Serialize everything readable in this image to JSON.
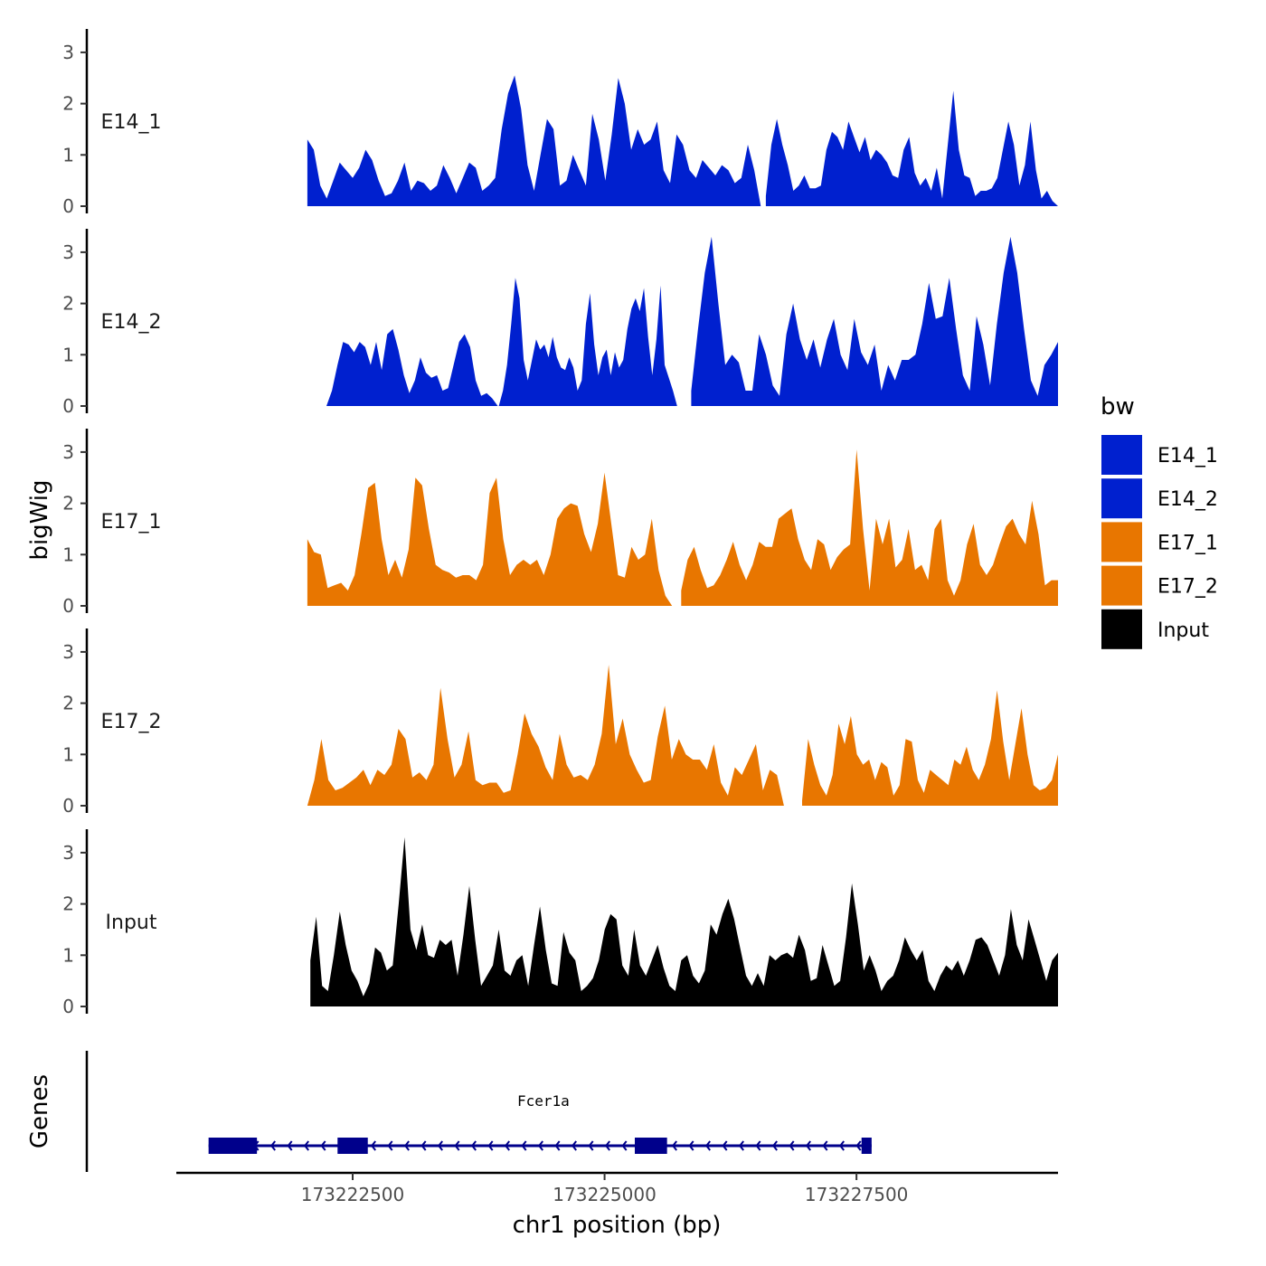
{
  "chart_data": {
    "type": "area",
    "ylabel": "bigWig",
    "xlabel": "chr1 position (bp)",
    "x_ticks": [
      "173222500",
      "173225000",
      "173227500"
    ],
    "x_tick_values": [
      173222500,
      173225000,
      173227500
    ],
    "xlim": [
      173220750,
      173229500
    ],
    "y_ticks": [
      "0",
      "1",
      "2",
      "3"
    ],
    "ylim": [
      0,
      3.4
    ],
    "legend": {
      "title": "bw",
      "placement": "right",
      "entries": [
        {
          "label": "E14_1",
          "color": "#0020CF"
        },
        {
          "label": "E14_2",
          "color": "#0020CF"
        },
        {
          "label": "E17_1",
          "color": "#E87600"
        },
        {
          "label": "E17_2",
          "color": "#E87600"
        },
        {
          "label": "Input",
          "color": "#000000"
        }
      ]
    },
    "series": [
      {
        "name": "E14_1",
        "color": "#0020CF",
        "segments": [
          {
            "start": 173222050,
            "end": 173226550,
            "values": [
              1.3,
              1.1,
              0.4,
              0.15,
              0.5,
              0.85,
              0.7,
              0.55,
              0.75,
              1.1,
              0.9,
              0.5,
              0.2,
              0.25,
              0.5,
              0.85,
              0.3,
              0.5,
              0.45,
              0.3,
              0.4,
              0.8,
              0.55,
              0.25,
              0.55,
              0.85,
              0.75,
              0.3,
              0.4,
              0.55,
              1.5,
              2.2,
              2.55,
              1.9,
              0.8,
              0.3,
              1.0,
              1.7,
              1.5,
              0.4,
              0.5,
              1.0,
              0.7,
              0.4,
              1.8,
              1.3,
              0.5,
              1.4,
              2.5,
              2.0,
              1.1,
              1.5,
              1.2,
              1.3,
              1.65,
              0.7,
              0.45,
              1.4,
              1.2,
              0.7,
              0.55,
              0.9,
              0.75,
              0.6,
              0.8,
              0.7,
              0.45,
              0.55,
              1.2,
              0.7,
              0.0
            ]
          },
          {
            "start": 173226600,
            "end": 173229500,
            "values": [
              0.2,
              1.2,
              1.7,
              1.2,
              0.8,
              0.3,
              0.4,
              0.6,
              0.35,
              0.35,
              0.4,
              1.1,
              1.45,
              1.35,
              1.1,
              1.65,
              1.35,
              1.05,
              1.35,
              0.9,
              1.1,
              1.0,
              0.85,
              0.6,
              0.55,
              1.1,
              1.35,
              0.65,
              0.4,
              0.55,
              0.3,
              0.75,
              0.15,
              1.2,
              2.25,
              1.1,
              0.6,
              0.55,
              0.2,
              0.3,
              0.3,
              0.35,
              0.55,
              1.1,
              1.65,
              1.2,
              0.4,
              0.8,
              1.65,
              0.7,
              0.15,
              0.3,
              0.1,
              0.0
            ]
          }
        ]
      },
      {
        "name": "E14_2",
        "color": "#0020CF",
        "segments": [
          {
            "start": 173222240,
            "end": 173223940,
            "values": [
              0.0,
              0.3,
              0.8,
              1.25,
              1.2,
              1.05,
              1.25,
              1.15,
              0.8,
              1.25,
              0.7,
              1.4,
              1.5,
              1.1,
              0.6,
              0.25,
              0.5,
              0.95,
              0.65,
              0.55,
              0.6,
              0.3,
              0.35,
              0.8,
              1.25,
              1.4,
              1.15,
              0.5,
              0.2,
              0.25,
              0.15,
              0.0
            ]
          },
          {
            "start": 173223950,
            "end": 173225720,
            "values": [
              0.0,
              0.3,
              0.8,
              1.6,
              2.5,
              2.1,
              0.9,
              0.5,
              0.9,
              1.3,
              1.1,
              1.2,
              0.95,
              1.35,
              0.95,
              0.75,
              0.7,
              0.95,
              0.75,
              0.3,
              0.5,
              1.6,
              2.2,
              1.2,
              0.6,
              0.95,
              1.1,
              0.6,
              1.05,
              0.75,
              0.9,
              1.5,
              1.9,
              2.1,
              1.85,
              2.3,
              1.35,
              0.6,
              1.3,
              2.35,
              0.8,
              0.55,
              0.3,
              0.0
            ]
          },
          {
            "start": 173225860,
            "end": 173229500,
            "values": [
              0.3,
              1.5,
              2.6,
              3.3,
              2.0,
              0.8,
              1.0,
              0.85,
              0.3,
              0.3,
              1.4,
              1.0,
              0.4,
              0.2,
              1.4,
              2.0,
              1.3,
              0.9,
              1.3,
              0.75,
              1.3,
              1.7,
              1.0,
              0.7,
              1.7,
              1.05,
              0.8,
              1.2,
              0.3,
              0.8,
              0.5,
              0.9,
              0.9,
              1.0,
              1.6,
              2.4,
              1.7,
              1.75,
              2.5,
              1.5,
              0.6,
              0.3,
              1.75,
              1.2,
              0.4,
              1.6,
              2.6,
              3.3,
              2.6,
              1.5,
              0.5,
              0.2,
              0.8,
              1.0,
              1.25
            ]
          }
        ]
      },
      {
        "name": "E17_1",
        "color": "#E87600",
        "segments": [
          {
            "start": 173222050,
            "end": 173225670,
            "values": [
              1.3,
              1.05,
              1.0,
              0.35,
              0.4,
              0.45,
              0.3,
              0.6,
              1.4,
              2.3,
              2.4,
              1.3,
              0.6,
              0.9,
              0.55,
              1.1,
              2.5,
              2.35,
              1.5,
              0.8,
              0.7,
              0.65,
              0.55,
              0.6,
              0.6,
              0.5,
              0.8,
              2.2,
              2.5,
              1.3,
              0.6,
              0.8,
              0.9,
              0.8,
              0.9,
              0.6,
              1.0,
              1.7,
              1.9,
              2.0,
              1.95,
              1.4,
              1.05,
              1.6,
              2.6,
              1.6,
              0.6,
              0.55,
              1.15,
              0.9,
              1.0,
              1.7,
              0.7,
              0.2,
              0.0
            ]
          },
          {
            "start": 173225760,
            "end": 173229500,
            "values": [
              0.3,
              0.9,
              1.15,
              0.7,
              0.35,
              0.4,
              0.6,
              0.9,
              1.25,
              0.8,
              0.5,
              0.8,
              1.25,
              1.15,
              1.15,
              1.7,
              1.8,
              1.9,
              1.3,
              0.9,
              0.7,
              1.3,
              1.2,
              0.7,
              0.95,
              1.1,
              1.2,
              3.05,
              1.5,
              0.3,
              1.7,
              1.2,
              1.7,
              0.75,
              0.9,
              1.5,
              0.7,
              0.8,
              0.5,
              1.5,
              1.7,
              0.5,
              0.2,
              0.5,
              1.2,
              1.6,
              0.8,
              0.6,
              0.8,
              1.2,
              1.55,
              1.7,
              1.4,
              1.2,
              2.05,
              1.4,
              0.4,
              0.5,
              0.5
            ]
          }
        ]
      },
      {
        "name": "E17_2",
        "color": "#E87600",
        "segments": [
          {
            "start": 173222050,
            "end": 173226780,
            "values": [
              0.0,
              0.5,
              1.3,
              0.5,
              0.3,
              0.35,
              0.45,
              0.55,
              0.7,
              0.4,
              0.7,
              0.6,
              0.8,
              1.5,
              1.3,
              0.55,
              0.65,
              0.5,
              0.8,
              2.3,
              1.3,
              0.55,
              0.8,
              1.45,
              0.5,
              0.4,
              0.45,
              0.45,
              0.25,
              0.3,
              1.0,
              1.8,
              1.4,
              1.15,
              0.75,
              0.5,
              1.4,
              0.8,
              0.55,
              0.6,
              0.5,
              0.8,
              1.4,
              2.75,
              1.2,
              1.7,
              1.0,
              0.7,
              0.45,
              0.5,
              1.35,
              1.95,
              0.9,
              1.3,
              1.0,
              0.9,
              0.9,
              0.7,
              1.2,
              0.45,
              0.2,
              0.75,
              0.6,
              0.9,
              1.2,
              0.3,
              0.7,
              0.6,
              0.0
            ]
          },
          {
            "start": 173226960,
            "end": 173229500,
            "values": [
              0.1,
              1.3,
              0.8,
              0.4,
              0.2,
              0.6,
              1.6,
              1.2,
              1.75,
              1.0,
              0.8,
              0.9,
              0.5,
              0.85,
              0.75,
              0.2,
              0.4,
              1.3,
              1.25,
              0.5,
              0.25,
              0.7,
              0.6,
              0.5,
              0.4,
              0.9,
              0.8,
              1.15,
              0.7,
              0.5,
              0.8,
              1.3,
              2.25,
              1.25,
              0.5,
              1.2,
              1.9,
              1.0,
              0.4,
              0.3,
              0.35,
              0.5,
              1.0
            ]
          }
        ]
      },
      {
        "name": "Input",
        "color": "#000000",
        "segments": [
          {
            "start": 173222080,
            "end": 173229500,
            "values": [
              0.9,
              1.75,
              0.4,
              0.3,
              1.0,
              1.85,
              1.2,
              0.7,
              0.5,
              0.2,
              0.45,
              1.15,
              1.05,
              0.7,
              0.8,
              2.0,
              3.3,
              1.5,
              1.1,
              1.6,
              1.0,
              0.95,
              1.3,
              1.2,
              1.3,
              0.6,
              1.4,
              2.35,
              1.3,
              0.4,
              0.6,
              0.8,
              1.5,
              0.7,
              0.6,
              0.9,
              1.0,
              0.4,
              1.2,
              1.95,
              1.1,
              0.45,
              0.4,
              1.45,
              1.05,
              0.9,
              0.3,
              0.4,
              0.55,
              0.9,
              1.5,
              1.8,
              1.7,
              0.8,
              0.6,
              1.5,
              0.8,
              0.6,
              0.9,
              1.2,
              0.75,
              0.4,
              0.3,
              0.9,
              1.0,
              0.6,
              0.45,
              0.7,
              1.6,
              1.4,
              1.8,
              2.1,
              1.7,
              1.15,
              0.6,
              0.4,
              0.65,
              0.4,
              1.0,
              0.9,
              1.0,
              1.05,
              0.95,
              1.4,
              1.1,
              0.5,
              0.55,
              1.2,
              0.8,
              0.4,
              0.5,
              1.35,
              2.4,
              1.6,
              0.7,
              1.0,
              0.7,
              0.3,
              0.5,
              0.6,
              0.9,
              1.35,
              1.1,
              0.9,
              1.1,
              0.5,
              0.3,
              0.6,
              0.8,
              0.7,
              0.9,
              0.6,
              0.9,
              1.3,
              1.35,
              1.2,
              0.9,
              0.6,
              1.0,
              1.9,
              1.2,
              0.9,
              1.7,
              1.3,
              0.9,
              0.5,
              0.9,
              1.05
            ]
          }
        ]
      }
    ],
    "gene": {
      "track_label": "Genes",
      "name": "Fcer1a",
      "color": "#00008B",
      "strand": "-",
      "start": 173221070,
      "end": 173227650,
      "exons": [
        [
          173221070,
          173221550
        ],
        [
          173222350,
          173222650
        ],
        [
          173225300,
          173225620
        ],
        [
          173227550,
          173227650
        ]
      ]
    }
  }
}
